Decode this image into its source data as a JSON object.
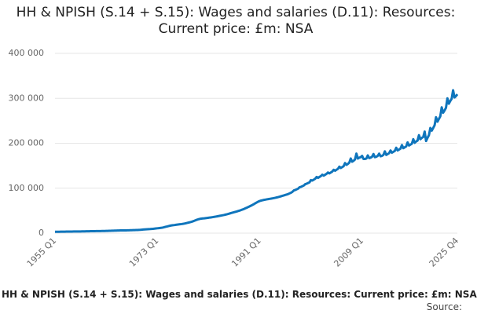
{
  "chart_data": {
    "type": "line",
    "title": "HH & NPISH (S.14 + S.15): Wages and salaries (D.11): Resources: Current price: £m: NSA",
    "caption": "HH & NPISH (S.14 + S.15): Wages and salaries (D.11): Resources: Current price: £m: NSA",
    "source": "Source:",
    "color": "#0f75bc",
    "grid": true,
    "ylim": [
      0,
      400000
    ],
    "yticks": [
      0,
      {
        "value": 100000,
        "label": "100 000"
      },
      {
        "value": 200000,
        "label": "200 000"
      },
      {
        "value": 300000,
        "label": "300 000"
      },
      {
        "value": 400000,
        "label": "400 000"
      }
    ],
    "categories": [
      "1955 Q1",
      null,
      null,
      null,
      null,
      null,
      null,
      null,
      null,
      null,
      null,
      null,
      null,
      null,
      null,
      null,
      null,
      null,
      null,
      null,
      null,
      null,
      null,
      null,
      null,
      null,
      null,
      null,
      null,
      null,
      null,
      null,
      null,
      null,
      null,
      null,
      null,
      null,
      null,
      null,
      null,
      null,
      null,
      null,
      null,
      null,
      null,
      null,
      null,
      null,
      null,
      null,
      null,
      null,
      null,
      null,
      null,
      null,
      null,
      null,
      null,
      null,
      null,
      null,
      null,
      null,
      null,
      null,
      null,
      null,
      null,
      null,
      "1973 Q1",
      null,
      null,
      null,
      null,
      null,
      null,
      null,
      null,
      null,
      null,
      null,
      null,
      null,
      null,
      null,
      null,
      null,
      null,
      null,
      null,
      null,
      null,
      null,
      null,
      null,
      null,
      null,
      null,
      null,
      null,
      null,
      null,
      null,
      null,
      null,
      null,
      null,
      null,
      null,
      null,
      null,
      null,
      null,
      null,
      null,
      null,
      null,
      null,
      null,
      null,
      null,
      null,
      null,
      null,
      null,
      null,
      null,
      null,
      null,
      null,
      null,
      null,
      null,
      null,
      null,
      null,
      null,
      null,
      null,
      null,
      null,
      "1991 Q1",
      null,
      null,
      null,
      null,
      null,
      null,
      null,
      null,
      null,
      null,
      null,
      null,
      null,
      null,
      null,
      null,
      null,
      null,
      null,
      null,
      null,
      null,
      null,
      null,
      null,
      null,
      null,
      null,
      null,
      null,
      null,
      null,
      null,
      null,
      null,
      null,
      null,
      null,
      null,
      null,
      null,
      null,
      null,
      null,
      null,
      null,
      null,
      null,
      null,
      null,
      null,
      null,
      null,
      null,
      null,
      null,
      null,
      null,
      null,
      null,
      null,
      null,
      null,
      null,
      null,
      null,
      null,
      null,
      null,
      null,
      null,
      "2009 Q1",
      null,
      null,
      null,
      null,
      null,
      null,
      null,
      null,
      null,
      null,
      null,
      null,
      null,
      null,
      null,
      null,
      null,
      null,
      null,
      null,
      null,
      null,
      null,
      null,
      null,
      null,
      null,
      null,
      null,
      null,
      null,
      null,
      null,
      null,
      null,
      null,
      null,
      null,
      null,
      null,
      null,
      null,
      null,
      null,
      null,
      null,
      null,
      null,
      null,
      null,
      null,
      null,
      null,
      null,
      null,
      null,
      null,
      null,
      null,
      null,
      null,
      null,
      null,
      null,
      null,
      null,
      "2025 Q4"
    ],
    "values": [
      3000,
      3050,
      3100,
      3150,
      3200,
      3250,
      3300,
      3350,
      3400,
      3450,
      3500,
      3550,
      3600,
      3620,
      3650,
      3680,
      3700,
      3750,
      3800,
      3850,
      3900,
      4000,
      4050,
      4100,
      4200,
      4300,
      4350,
      4400,
      4450,
      4500,
      4550,
      4600,
      4650,
      4700,
      4800,
      4900,
      5000,
      5100,
      5200,
      5300,
      5400,
      5500,
      5600,
      5700,
      5800,
      5900,
      6000,
      6000,
      6050,
      6100,
      6200,
      6300,
      6400,
      6500,
      6600,
      6700,
      6800,
      6900,
      7000,
      7200,
      7400,
      7700,
      8000,
      8300,
      8500,
      8700,
      8900,
      9100,
      9400,
      9700,
      10000,
      10400,
      10800,
      11200,
      11600,
      12000,
      12600,
      13400,
      14300,
      15000,
      15800,
      16600,
      17200,
      17600,
      18000,
      18500,
      19000,
      19400,
      19800,
      20200,
      20700,
      21300,
      22000,
      22800,
      23600,
      24400,
      25200,
      26300,
      27500,
      28800,
      30000,
      31000,
      31800,
      32300,
      32700,
      33000,
      33400,
      33800,
      34300,
      34800,
      35200,
      35700,
      36200,
      36800,
      37400,
      38000,
      38600,
      39200,
      39800,
      40500,
      41300,
      42100,
      43000,
      43900,
      44800,
      45700,
      46600,
      47500,
      48400,
      49400,
      50400,
      51500,
      52700,
      54000,
      55400,
      56800,
      58200,
      59800,
      61400,
      63000,
      64800,
      66700,
      68500,
      70200,
      71500,
      72500,
      73300,
      74000,
      74600,
      75200,
      75700,
      76300,
      76800,
      77400,
      78000,
      78700,
      79500,
      80300,
      81200,
      82100,
      83000,
      84000,
      85000,
      86000,
      87000,
      88500,
      90000,
      92000,
      95000,
      96000,
      97500,
      99000,
      102000,
      103000,
      104500,
      106000,
      109000,
      110000,
      111500,
      113000,
      118000,
      117000,
      119000,
      121000,
      125000,
      123000,
      125000,
      127000,
      130000,
      128000,
      130000,
      132000,
      135000,
      133000,
      135000,
      137000,
      141000,
      139000,
      141000,
      143000,
      148000,
      145000,
      147000,
      149000,
      156000,
      152000,
      154000,
      157000,
      166000,
      159000,
      161000,
      164000,
      177000,
      166000,
      168000,
      169000,
      172000,
      165000,
      165000,
      166000,
      173000,
      167000,
      168000,
      170000,
      176000,
      169000,
      170000,
      172000,
      177000,
      171000,
      172000,
      174000,
      182000,
      174000,
      176000,
      178000,
      184000,
      179000,
      181000,
      183000,
      190000,
      184000,
      186000,
      188000,
      196000,
      189000,
      191000,
      193000,
      202000,
      195000,
      197000,
      199000,
      209000,
      201000,
      204000,
      206000,
      218000,
      209000,
      212000,
      214000,
      226000,
      205000,
      212000,
      218000,
      234000,
      228000,
      234000,
      240000,
      258000,
      248000,
      254000,
      260000,
      280000,
      268000,
      273000,
      279000,
      300000,
      288000,
      294000,
      299000,
      318000,
      302000,
      305000,
      309000
    ]
  }
}
